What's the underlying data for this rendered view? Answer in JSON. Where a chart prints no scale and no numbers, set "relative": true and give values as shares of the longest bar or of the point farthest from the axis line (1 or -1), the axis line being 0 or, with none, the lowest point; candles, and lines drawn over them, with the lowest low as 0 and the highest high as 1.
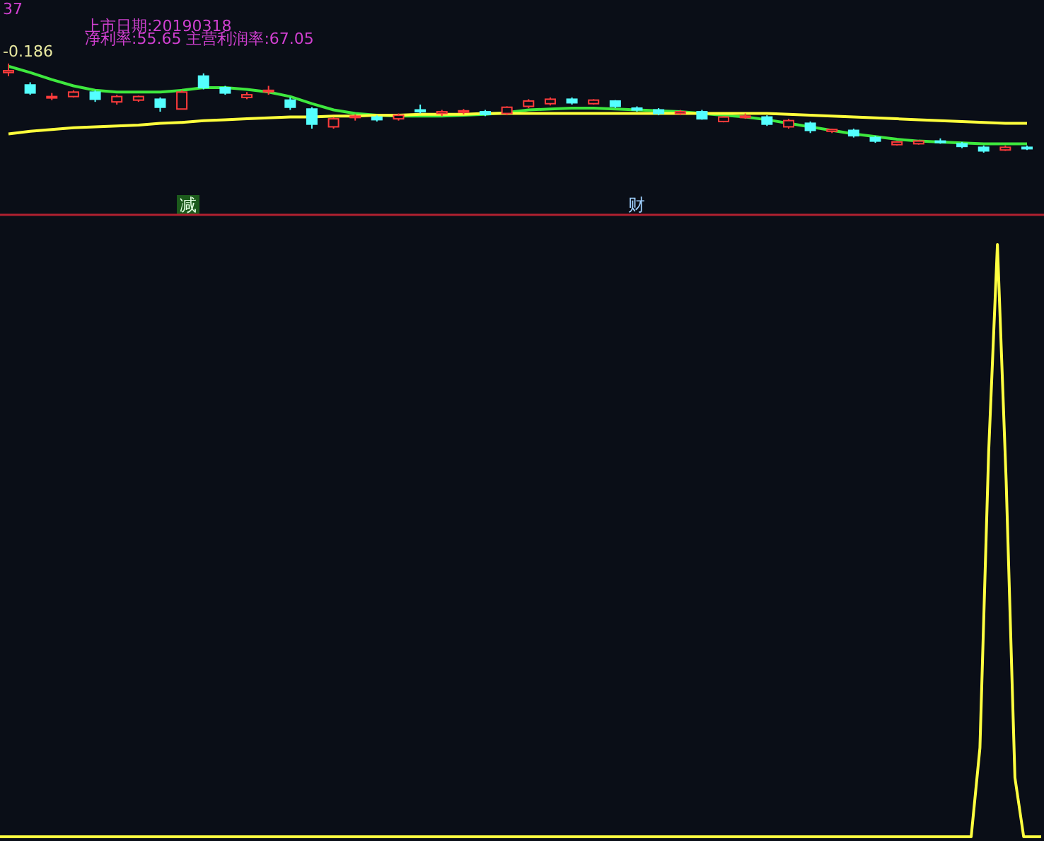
{
  "chart_data": [
    {
      "type": "candlestick",
      "relative": true,
      "categories": [
        null,
        null,
        null,
        null,
        null,
        null,
        null,
        null,
        null,
        null,
        null,
        null,
        null,
        null,
        null,
        null,
        null,
        null,
        null,
        null,
        null,
        null,
        null,
        null,
        null,
        null,
        null,
        null,
        null,
        null,
        null,
        null,
        null,
        null,
        null,
        null,
        null,
        null,
        null,
        null,
        null,
        null,
        null,
        null,
        null,
        null,
        null,
        null
      ],
      "ohlc": [
        [
          0.9,
          1.0,
          0.86,
          0.92
        ],
        [
          0.76,
          0.79,
          0.65,
          0.67
        ],
        [
          0.63,
          0.67,
          0.59,
          0.63
        ],
        [
          0.63,
          0.7,
          0.62,
          0.68
        ],
        [
          0.68,
          0.7,
          0.57,
          0.6
        ],
        [
          0.57,
          0.65,
          0.54,
          0.63
        ],
        [
          0.59,
          0.64,
          0.57,
          0.63
        ],
        [
          0.6,
          0.62,
          0.46,
          0.51
        ],
        [
          0.49,
          0.7,
          0.49,
          0.68
        ],
        [
          0.86,
          0.89,
          0.71,
          0.73
        ],
        [
          0.73,
          0.75,
          0.65,
          0.67
        ],
        [
          0.62,
          0.68,
          0.6,
          0.65
        ],
        [
          0.7,
          0.75,
          0.65,
          0.7
        ],
        [
          0.59,
          0.62,
          0.48,
          0.51
        ],
        [
          0.49,
          0.51,
          0.27,
          0.32
        ],
        [
          0.29,
          0.4,
          0.27,
          0.38
        ],
        [
          0.4,
          0.43,
          0.36,
          0.41
        ],
        [
          0.4,
          0.42,
          0.35,
          0.37
        ],
        [
          0.38,
          0.44,
          0.36,
          0.42
        ],
        [
          0.48,
          0.54,
          0.44,
          0.46
        ],
        [
          0.44,
          0.48,
          0.41,
          0.46
        ],
        [
          0.46,
          0.49,
          0.43,
          0.47
        ],
        [
          0.46,
          0.48,
          0.41,
          0.43
        ],
        [
          0.44,
          0.52,
          0.42,
          0.51
        ],
        [
          0.52,
          0.6,
          0.5,
          0.58
        ],
        [
          0.55,
          0.62,
          0.53,
          0.6
        ],
        [
          0.6,
          0.62,
          0.54,
          0.56
        ],
        [
          0.55,
          0.6,
          0.54,
          0.59
        ],
        [
          0.58,
          0.59,
          0.5,
          0.52
        ],
        [
          0.5,
          0.52,
          0.46,
          0.48
        ],
        [
          0.48,
          0.5,
          0.42,
          0.44
        ],
        [
          0.44,
          0.48,
          0.42,
          0.46
        ],
        [
          0.46,
          0.48,
          0.37,
          0.38
        ],
        [
          0.35,
          0.41,
          0.34,
          0.4
        ],
        [
          0.4,
          0.44,
          0.38,
          0.41
        ],
        [
          0.4,
          0.42,
          0.3,
          0.32
        ],
        [
          0.29,
          0.38,
          0.27,
          0.36
        ],
        [
          0.33,
          0.35,
          0.22,
          0.25
        ],
        [
          0.24,
          0.27,
          0.22,
          0.26
        ],
        [
          0.25,
          0.27,
          0.17,
          0.19
        ],
        [
          0.17,
          0.19,
          0.11,
          0.13
        ],
        [
          0.09,
          0.13,
          0.08,
          0.12
        ],
        [
          0.1,
          0.14,
          0.09,
          0.13
        ],
        [
          0.13,
          0.16,
          0.1,
          0.12
        ],
        [
          0.1,
          0.12,
          0.05,
          0.07
        ],
        [
          0.06,
          0.08,
          0.0,
          0.02
        ],
        [
          0.03,
          0.08,
          0.02,
          0.06
        ],
        [
          0.06,
          0.08,
          0.03,
          0.05
        ]
      ],
      "series": [
        {
          "type": "line",
          "color": "#3ee83e",
          "values": [
            0.97,
            0.9,
            0.82,
            0.75,
            0.7,
            0.68,
            0.68,
            0.68,
            0.7,
            0.73,
            0.73,
            0.71,
            0.68,
            0.63,
            0.55,
            0.48,
            0.44,
            0.42,
            0.41,
            0.41,
            0.41,
            0.42,
            0.43,
            0.45,
            0.48,
            0.49,
            0.5,
            0.5,
            0.49,
            0.48,
            0.47,
            0.46,
            0.44,
            0.42,
            0.4,
            0.37,
            0.33,
            0.29,
            0.25,
            0.21,
            0.18,
            0.15,
            0.13,
            0.12,
            0.11,
            0.1,
            0.1,
            0.1
          ]
        },
        {
          "type": "line",
          "color": "#ffff3c",
          "values": [
            0.21,
            0.24,
            0.26,
            0.28,
            0.29,
            0.3,
            0.31,
            0.33,
            0.34,
            0.36,
            0.37,
            0.38,
            0.39,
            0.4,
            0.4,
            0.41,
            0.41,
            0.42,
            0.42,
            0.43,
            0.43,
            0.43,
            0.44,
            0.44,
            0.44,
            0.44,
            0.44,
            0.44,
            0.44,
            0.44,
            0.44,
            0.44,
            0.44,
            0.44,
            0.44,
            0.44,
            0.43,
            0.42,
            0.41,
            0.4,
            0.39,
            0.38,
            0.37,
            0.36,
            0.35,
            0.34,
            0.33,
            0.33
          ]
        }
      ],
      "annotations": [
        "37",
        "上市日期:20190318",
        "净利率:55.65 主营利润率:67.05",
        "-0.186",
        "减",
        "财"
      ]
    },
    {
      "type": "line",
      "relative": true,
      "color": "#ffff40",
      "categories": [
        null,
        null,
        null,
        null,
        null,
        null,
        null,
        null,
        null,
        null,
        null,
        null,
        null,
        null,
        null,
        null,
        null,
        null,
        null,
        null,
        null,
        null,
        null,
        null,
        null,
        null,
        null,
        null,
        null,
        null,
        null,
        null,
        null,
        null,
        null,
        null,
        null,
        null,
        null,
        null,
        null,
        null,
        null,
        null,
        null,
        null,
        null,
        null,
        null,
        null,
        null,
        null,
        null,
        null,
        null,
        null,
        null,
        null,
        null,
        null,
        null,
        null,
        null,
        null,
        null,
        null,
        null,
        null,
        null,
        null,
        null,
        null,
        null,
        null,
        null,
        null,
        null,
        null,
        null,
        null,
        null,
        null,
        null,
        null,
        null,
        null,
        null,
        null,
        null,
        null,
        null,
        null,
        null,
        null,
        null,
        null,
        null,
        null,
        null,
        null,
        null,
        null,
        null,
        null,
        null,
        null,
        null,
        null,
        null,
        null,
        null,
        null,
        null,
        null,
        null,
        null,
        null,
        null,
        null,
        null
      ],
      "values": [
        0,
        0,
        0,
        0,
        0,
        0,
        0,
        0,
        0,
        0,
        0,
        0,
        0,
        0,
        0,
        0,
        0,
        0,
        0,
        0,
        0,
        0,
        0,
        0,
        0,
        0,
        0,
        0,
        0,
        0,
        0,
        0,
        0,
        0,
        0,
        0,
        0,
        0,
        0,
        0,
        0,
        0,
        0,
        0,
        0,
        0,
        0,
        0,
        0,
        0,
        0,
        0,
        0,
        0,
        0,
        0,
        0,
        0,
        0,
        0,
        0,
        0,
        0,
        0,
        0,
        0,
        0,
        0,
        0,
        0,
        0,
        0,
        0,
        0,
        0,
        0,
        0,
        0,
        0,
        0,
        0,
        0,
        0,
        0,
        0,
        0,
        0,
        0,
        0,
        0,
        0,
        0,
        0,
        0,
        0,
        0,
        0,
        0,
        0,
        0,
        0,
        0,
        0,
        0,
        0,
        0,
        0,
        0,
        0,
        0,
        0,
        0,
        0.15,
        0.65,
        1,
        0.6,
        0.1,
        0,
        0,
        0
      ]
    }
  ]
}
